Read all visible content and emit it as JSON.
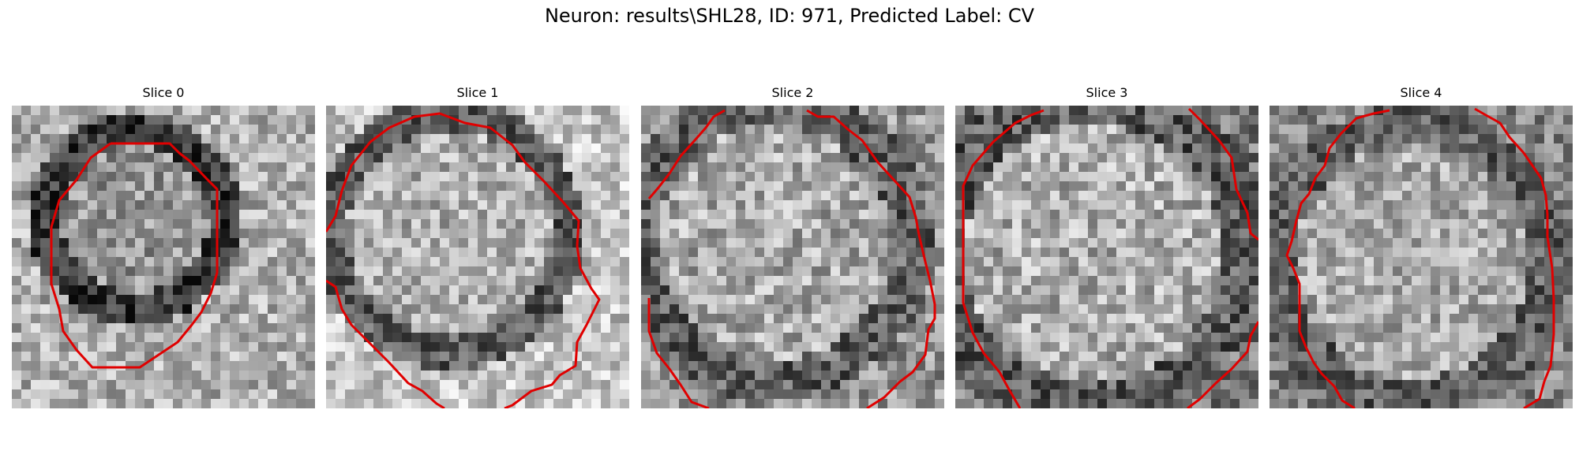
{
  "figure": {
    "suptitle": "Neuron: results\\SHL28, ID: 971, Predicted Label: CV",
    "contour_color": "#e00000"
  },
  "slices": [
    {
      "title": "Slice 0"
    },
    {
      "title": "Slice 1"
    },
    {
      "title": "Slice 2"
    },
    {
      "title": "Slice 3"
    },
    {
      "title": "Slice 4"
    }
  ]
}
